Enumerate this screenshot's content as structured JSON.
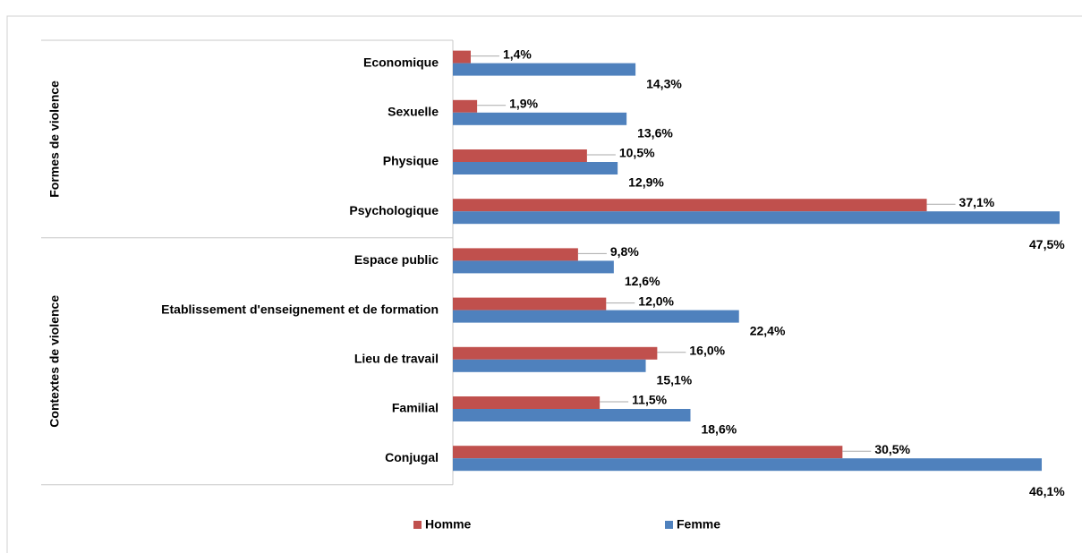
{
  "chart_data": {
    "type": "bar",
    "orientation": "horizontal",
    "groups": [
      {
        "name": "Formes de violence",
        "count": 4
      },
      {
        "name": "Contextes de violence",
        "count": 5
      }
    ],
    "categories": [
      "Economique",
      "Sexuelle",
      "Physique",
      "Psychologique",
      "Espace public",
      "Etablissement d'enseignement et de formation",
      "Lieu de travail",
      "Familial",
      "Conjugal"
    ],
    "series": [
      {
        "name": "Homme",
        "color": "#c0504d",
        "values": [
          1.4,
          1.9,
          10.5,
          37.1,
          9.8,
          12.0,
          16.0,
          11.5,
          30.5
        ],
        "value_labels": [
          "1,4%",
          "1,9%",
          "10,5%",
          "37,1%",
          "9,8%",
          "12,0%",
          "16,0%",
          "11,5%",
          "30,5%"
        ]
      },
      {
        "name": "Femme",
        "color": "#4f81bd",
        "values": [
          14.3,
          13.6,
          12.9,
          47.5,
          12.6,
          22.4,
          15.1,
          18.6,
          46.1
        ],
        "value_labels": [
          "14,3%",
          "13,6%",
          "12,9%",
          "47,5%",
          "12,6%",
          "22,4%",
          "15,1%",
          "18,6%",
          "46,1%"
        ]
      }
    ]
  }
}
